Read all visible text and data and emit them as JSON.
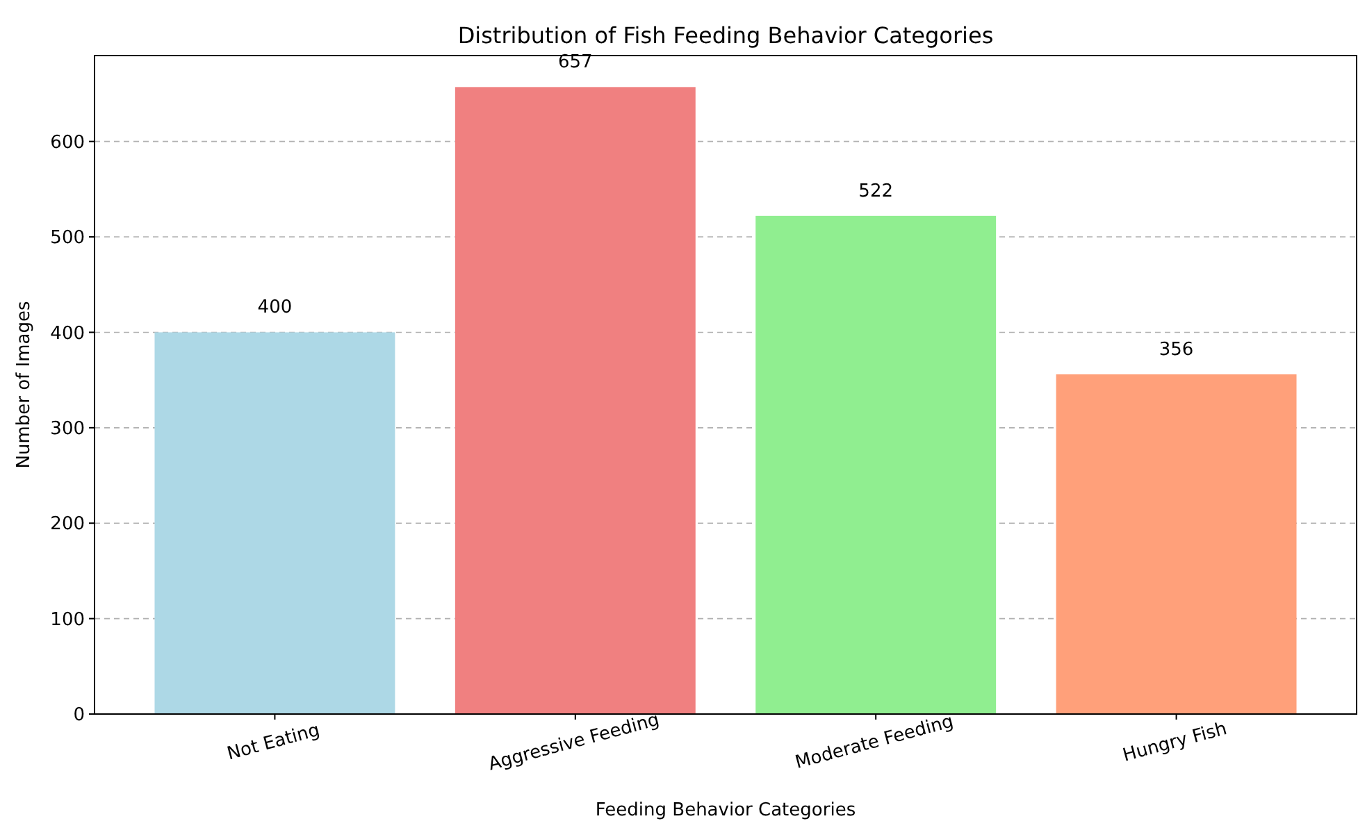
{
  "chart_data": {
    "type": "bar",
    "title": "Distribution of Fish Feeding Behavior Categories",
    "xlabel": "Feeding Behavior Categories",
    "ylabel": "Number of Images",
    "categories": [
      "Not Eating",
      "Aggressive Feeding",
      "Moderate Feeding",
      "Hungry Fish"
    ],
    "values": [
      400,
      657,
      522,
      356
    ],
    "colors": [
      "#add8e6",
      "#f08080",
      "#90ee90",
      "#ffa07a"
    ],
    "ylim": [
      0,
      690
    ],
    "yticks": [
      0,
      100,
      200,
      300,
      400,
      500,
      600
    ],
    "grid": "y",
    "data_labels": true
  }
}
